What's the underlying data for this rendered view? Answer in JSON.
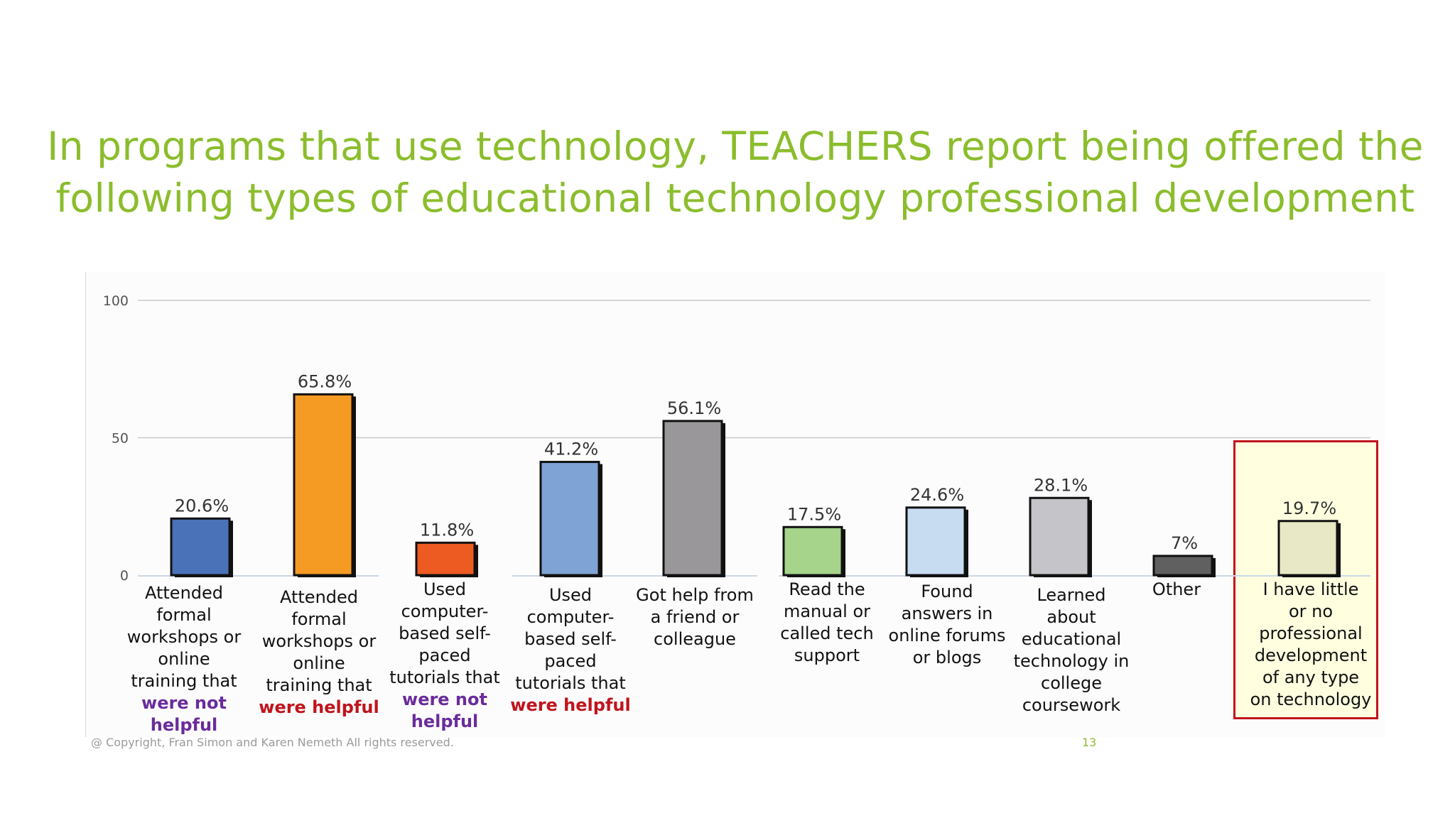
{
  "slide": {
    "title_line1": "In programs that use technology, TEACHERS report being offered the",
    "title_line2": "following types of educational technology professional development",
    "copyright": "@ Copyright, Fran Simon and Karen Nemeth All rights reserved.",
    "page_number": "13",
    "title_color": "#8bbd2c"
  },
  "chart_data": {
    "type": "bar",
    "categories": [
      "Attended formal workshops or online training that were not helpful",
      "Attended formal workshops or online training that were helpful",
      "Used computer-based self-paced tutorials that were not helpful",
      "Used computer-based self-paced tutorials that were helpful",
      "Got help from a friend or colleague",
      "Read the manual or called tech support",
      "Found answers in online forums or blogs",
      "Learned about educational technology in college coursework",
      "Other",
      "I have little or no professional development of any type on technology"
    ],
    "category_lines": [
      {
        "plain": [
          "Attended",
          "formal",
          "workshops or",
          "online",
          "training that"
        ],
        "emph": [
          "were not",
          "helpful"
        ],
        "emph_color": "#6a2c9c"
      },
      {
        "plain": [
          "Attended",
          "formal",
          "workshops or",
          "online",
          "training that"
        ],
        "emph": [
          "were helpful"
        ],
        "emph_color": "#c0141c"
      },
      {
        "plain": [
          "Used",
          "computer-",
          "based self-",
          "paced",
          "tutorials that"
        ],
        "emph": [
          "were not",
          "helpful"
        ],
        "emph_color": "#6a2c9c"
      },
      {
        "plain": [
          "Used",
          "computer-",
          "based self-",
          "paced",
          "tutorials that"
        ],
        "emph": [
          "were helpful"
        ],
        "emph_color": "#c0141c"
      },
      {
        "plain": [
          "Got help from",
          "a friend or",
          "colleague"
        ],
        "emph": [],
        "emph_color": ""
      },
      {
        "plain": [
          "Read the",
          "manual or",
          "called tech",
          "support"
        ],
        "emph": [],
        "emph_color": ""
      },
      {
        "plain": [
          "Found",
          "answers in",
          "online forums",
          "or blogs"
        ],
        "emph": [],
        "emph_color": ""
      },
      {
        "plain": [
          "Learned",
          "about",
          "educational",
          "technology in",
          "college",
          "coursework"
        ],
        "emph": [],
        "emph_color": ""
      },
      {
        "plain": [
          "Other"
        ],
        "emph": [],
        "emph_color": ""
      },
      {
        "plain": [
          "I have little",
          "or no",
          "professional",
          "development",
          "of any type",
          "on technology"
        ],
        "emph": [],
        "emph_color": ""
      }
    ],
    "values": [
      20.6,
      65.8,
      11.8,
      41.2,
      56.1,
      17.5,
      24.6,
      28.1,
      7,
      19.7
    ],
    "value_labels": [
      "20.6%",
      "65.8%",
      "11.8%",
      "41.2%",
      "56.1%",
      "17.5%",
      "24.6%",
      "28.1%",
      "7%",
      "19.7%"
    ],
    "colors": [
      "#4a72b8",
      "#f59a23",
      "#ee5b22",
      "#7fa3d4",
      "#999799",
      "#a5d48a",
      "#c8dcf1",
      "#c5c4c8",
      "#606060",
      "#e8e8c6"
    ],
    "y_ticks": [
      "100",
      "50",
      "0"
    ],
    "ylim": [
      0,
      100
    ],
    "grid": true,
    "highlighted_category": "I have little or no professional development of any type on technology",
    "highlight_color": "#c0141c"
  }
}
